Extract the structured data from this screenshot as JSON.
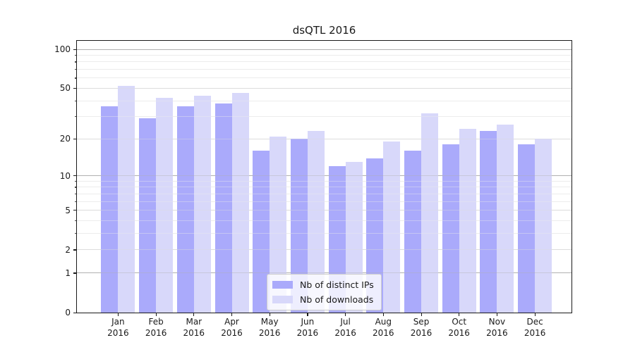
{
  "chart_data": {
    "type": "bar",
    "title": "dsQTL 2016",
    "categories": [
      "Jan",
      "Feb",
      "Mar",
      "Apr",
      "May",
      "Jun",
      "Jul",
      "Aug",
      "Sep",
      "Oct",
      "Nov",
      "Dec"
    ],
    "category_year": "2016",
    "series": [
      {
        "name": "Nb of distinct IPs",
        "color": "#aaaafb",
        "values": [
          36,
          29,
          36,
          38,
          16,
          20,
          12,
          14,
          16,
          18,
          23,
          18
        ]
      },
      {
        "name": "Nb of downloads",
        "color": "#d8d8fa",
        "values": [
          52,
          42,
          44,
          46,
          21,
          23,
          13,
          19,
          32,
          24,
          26,
          20
        ]
      }
    ],
    "yscale": "log1p",
    "ylim": [
      0,
      116
    ],
    "yticks_labeled": [
      0,
      1,
      2,
      5,
      10,
      20,
      50,
      100
    ],
    "yticks_decade": [
      1,
      10,
      100
    ],
    "yticks_minor": [
      3,
      4,
      6,
      7,
      8,
      9,
      30,
      40,
      60,
      70,
      80,
      90
    ],
    "grid": true,
    "legend_position": "lower center",
    "colors": {
      "grid_decade": "#b0b0b0",
      "grid_labeled": "#dcdcdc",
      "grid_minor": "#ececec",
      "spine": "#1a1a1a"
    }
  }
}
